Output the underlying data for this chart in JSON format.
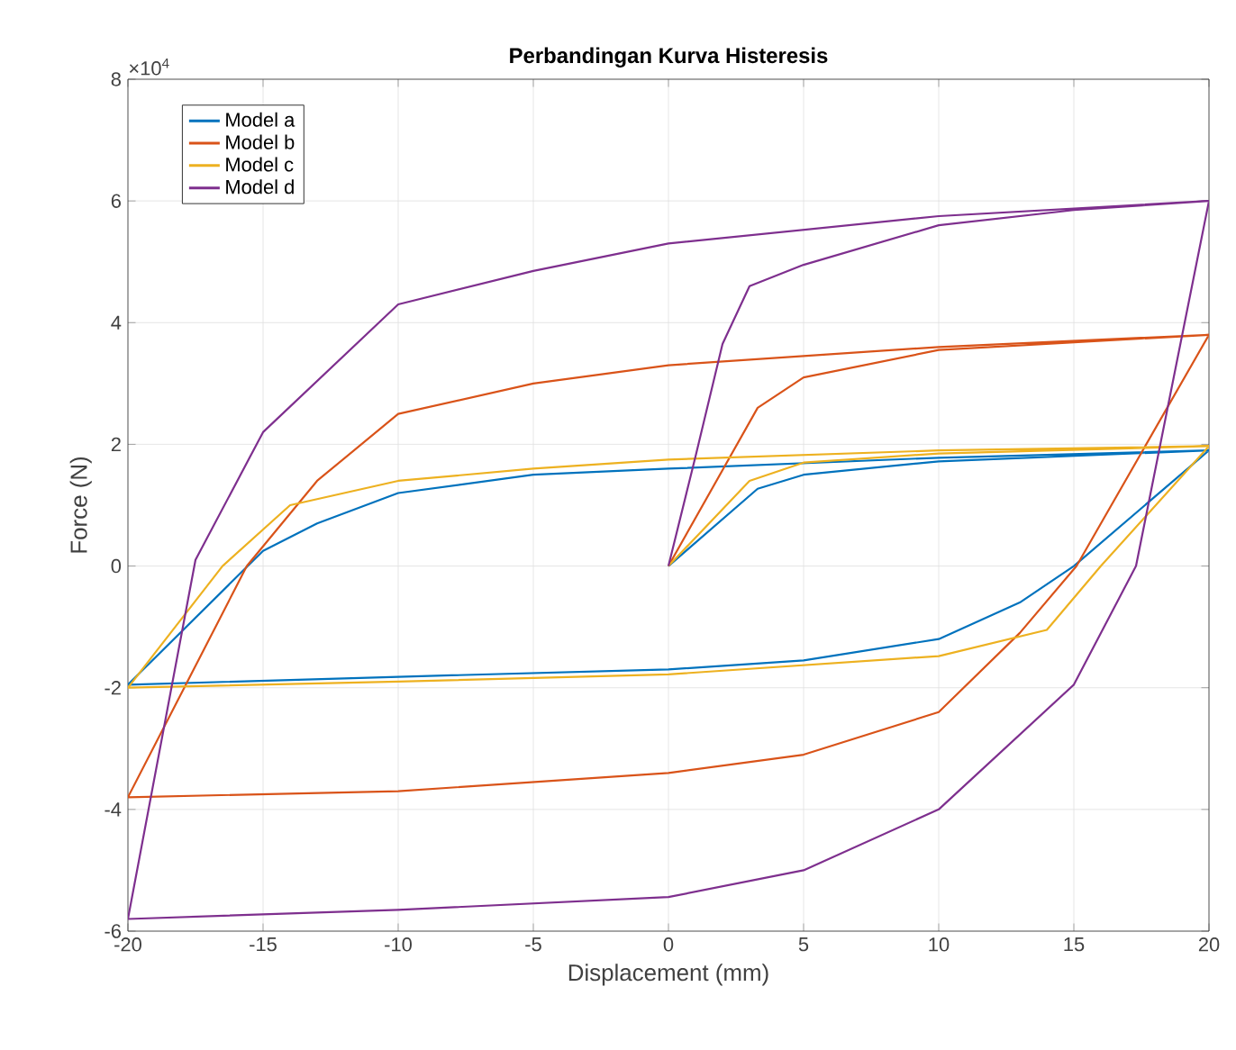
{
  "chart_data": {
    "type": "line",
    "title": "Perbandingan Kurva Histeresis",
    "xlabel": "Displacement (mm)",
    "ylabel": "Force (N)",
    "annotations": [
      "×10$^{4}$"
    ],
    "xlim": [
      -20,
      20
    ],
    "xticks": [
      -20,
      -15,
      -10,
      -5,
      0,
      5,
      10,
      15,
      20
    ],
    "ylim": [
      -6,
      8
    ],
    "yticks": [
      -6,
      -4,
      -2,
      0,
      2,
      4,
      6,
      8
    ],
    "grid": true,
    "legend": "top left",
    "marker": "none",
    "line_style": "solid",
    "series": [
      {
        "name": "Model a",
        "color": "#0072bd",
        "x": [
          0,
          3.3,
          5,
          10,
          20,
          10,
          0,
          -5,
          -10,
          -13,
          -15,
          -20,
          -10,
          0,
          5,
          10,
          13,
          15,
          20
        ],
        "values": [
          0,
          1.27,
          1.5,
          1.72,
          1.9,
          1.78,
          1.6,
          1.5,
          1.2,
          0.7,
          0.25,
          -1.95,
          -1.82,
          -1.7,
          -1.55,
          -1.2,
          -0.6,
          0,
          1.9
        ]
      },
      {
        "name": "Model b",
        "color": "#d95319",
        "x": [
          0,
          3.3,
          5,
          10,
          20,
          10,
          0,
          -5,
          -10,
          -13,
          -15.6,
          -20,
          -10,
          0,
          5,
          10,
          13,
          15.1,
          20
        ],
        "values": [
          0,
          2.6,
          3.1,
          3.55,
          3.8,
          3.6,
          3.3,
          3.0,
          2.5,
          1.4,
          0,
          -3.8,
          -3.7,
          -3.4,
          -3.1,
          -2.4,
          -1.1,
          0,
          3.8
        ]
      },
      {
        "name": "Model c",
        "color": "#edb120",
        "x": [
          0,
          3,
          5,
          10,
          20,
          10,
          0,
          -5,
          -10,
          -14,
          -16.5,
          -20,
          -10,
          0,
          10,
          14,
          16,
          20
        ],
        "values": [
          0,
          1.4,
          1.7,
          1.85,
          1.97,
          1.9,
          1.75,
          1.6,
          1.4,
          1.0,
          0,
          -2.0,
          -1.9,
          -1.78,
          -1.48,
          -1.05,
          0,
          1.97
        ]
      },
      {
        "name": "Model d",
        "color": "#7e2f8e",
        "x": [
          0,
          1,
          2,
          3,
          5,
          10,
          15,
          20,
          10,
          0,
          -5,
          -10,
          -15,
          -17.5,
          -20,
          -10,
          0,
          5,
          10,
          15,
          17.3,
          20
        ],
        "values": [
          0,
          1.8,
          3.65,
          4.6,
          4.95,
          5.6,
          5.85,
          6.0,
          5.75,
          5.3,
          4.85,
          4.3,
          2.2,
          0.1,
          -5.8,
          -5.65,
          -5.44,
          -5.0,
          -4.0,
          -1.95,
          0,
          6.0
        ]
      }
    ]
  }
}
